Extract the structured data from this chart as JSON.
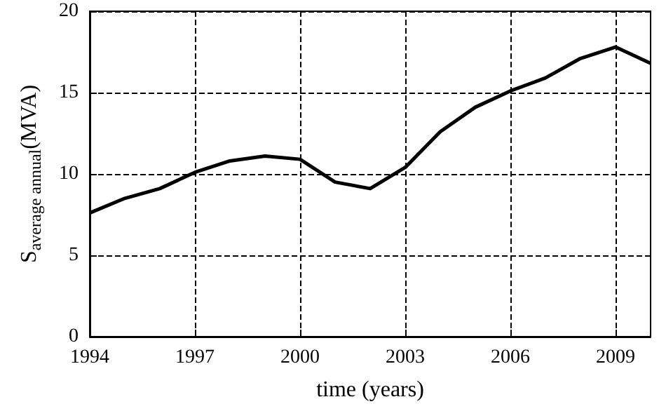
{
  "chart_data": {
    "type": "line",
    "xlabel": "time (years)",
    "ylabel": "S$_{average annual}$(MVA)",
    "x": [
      1994,
      1995,
      1996,
      1997,
      1998,
      1999,
      2000,
      2001,
      2002,
      2003,
      2004,
      2005,
      2006,
      2007,
      2008,
      2009,
      2010
    ],
    "series": [
      {
        "color": "#000000",
        "values": [
          7.6,
          8.5,
          9.1,
          10.1,
          10.8,
          11.1,
          10.9,
          9.5,
          9.1,
          10.4,
          12.6,
          14.1,
          15.1,
          15.9,
          17.1,
          17.8,
          16.8
        ]
      }
    ],
    "xlim": [
      1994,
      2010
    ],
    "xticks": [
      1994,
      1997,
      2000,
      2003,
      2006,
      2009
    ],
    "ylim": [
      0,
      20
    ],
    "yticks": [
      0,
      5,
      10,
      15,
      20
    ],
    "grid": true,
    "line_style": "solid",
    "marker": "none"
  }
}
